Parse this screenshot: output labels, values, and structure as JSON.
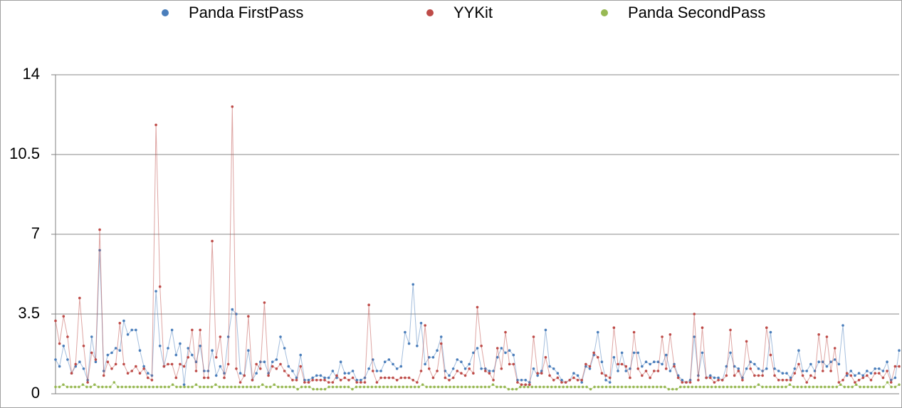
{
  "chart_data": {
    "type": "line",
    "ylim": [
      0,
      14
    ],
    "yticks": [
      0,
      3.5,
      7,
      10.5,
      14
    ],
    "grid": true,
    "legend": "top",
    "series": [
      {
        "name": "Panda FirstPass",
        "color": "#4a7ebb",
        "values": [
          1.5,
          1.2,
          2.1,
          1.5,
          0.9,
          1.2,
          1.4,
          1.1,
          0.6,
          2.5,
          1.4,
          6.3,
          1.0,
          1.7,
          1.8,
          2.0,
          1.9,
          3.2,
          2.6,
          2.8,
          2.8,
          1.9,
          1.2,
          0.9,
          0.8,
          4.5,
          2.1,
          1.2,
          2.0,
          2.8,
          1.7,
          2.2,
          0.4,
          2.0,
          1.7,
          1.4,
          2.1,
          1.0,
          1.0,
          1.9,
          0.8,
          1.2,
          0.9,
          2.5,
          3.7,
          3.5,
          0.9,
          0.8,
          1.9,
          0.6,
          0.9,
          1.4,
          1.4,
          0.9,
          1.4,
          1.5,
          2.5,
          2.0,
          1.2,
          1.0,
          0.7,
          1.7,
          0.6,
          0.6,
          0.7,
          0.8,
          0.8,
          0.7,
          0.7,
          1.0,
          0.7,
          1.4,
          0.9,
          0.9,
          1.0,
          0.6,
          0.6,
          0.7,
          1.1,
          1.5,
          1.0,
          1.0,
          1.4,
          1.5,
          1.3,
          1.1,
          1.2,
          2.7,
          2.2,
          4.8,
          2.1,
          3.1,
          1.3,
          1.6,
          1.6,
          1.9,
          2.5,
          1.0,
          0.8,
          1.1,
          1.5,
          1.4,
          1.1,
          1.3,
          1.8,
          2.0,
          1.1,
          1.1,
          1.0,
          1.0,
          1.6,
          2.0,
          1.8,
          1.9,
          1.7,
          0.6,
          0.6,
          0.6,
          0.5,
          1.1,
          0.8,
          1.0,
          2.8,
          1.2,
          1.1,
          0.9,
          0.6,
          0.5,
          0.6,
          0.9,
          0.8,
          0.5,
          1.2,
          1.1,
          1.7,
          2.7,
          1.4,
          0.6,
          0.5,
          1.6,
          1.0,
          1.8,
          1.0,
          1.1,
          1.8,
          1.8,
          1.2,
          1.4,
          1.3,
          1.4,
          1.4,
          1.3,
          1.7,
          1.0,
          1.3,
          0.8,
          0.6,
          0.5,
          0.6,
          2.5,
          0.8,
          1.8,
          0.7,
          0.8,
          0.7,
          0.7,
          0.6,
          1.2,
          1.8,
          1.2,
          1.1,
          0.7,
          1.1,
          1.4,
          1.3,
          1.1,
          1.0,
          1.1,
          2.7,
          1.1,
          1.0,
          0.9,
          0.9,
          0.7,
          1.1,
          1.9,
          1.0,
          1.0,
          1.3,
          1.0,
          1.4,
          1.4,
          1.2,
          1.4,
          1.5,
          1.3,
          3.0,
          0.8,
          1.0,
          0.8,
          0.9,
          0.8,
          1.0,
          0.9,
          1.1,
          1.1,
          1.0,
          1.4,
          0.6,
          0.7,
          1.9
        ]
      },
      {
        "name": "YYKit",
        "color": "#be4b48",
        "values": [
          3.2,
          2.2,
          3.4,
          2.5,
          0.9,
          1.3,
          4.2,
          2.1,
          0.5,
          1.8,
          1.5,
          7.2,
          0.8,
          1.4,
          1.1,
          1.3,
          3.1,
          1.3,
          0.9,
          1.0,
          1.2,
          0.9,
          1.1,
          0.7,
          0.6,
          11.8,
          4.7,
          1.2,
          1.3,
          1.3,
          0.7,
          1.3,
          1.2,
          1.6,
          2.8,
          1.0,
          2.8,
          0.7,
          0.7,
          6.7,
          1.6,
          2.5,
          0.7,
          1.3,
          12.6,
          1.1,
          0.5,
          0.8,
          3.4,
          0.6,
          1.3,
          1.1,
          4.0,
          0.8,
          1.2,
          1.1,
          1.3,
          1.0,
          0.8,
          0.6,
          0.6,
          1.2,
          0.5,
          0.5,
          0.6,
          0.6,
          0.6,
          0.6,
          0.5,
          0.5,
          0.8,
          0.6,
          0.7,
          0.6,
          0.7,
          0.5,
          0.5,
          0.5,
          3.9,
          1.0,
          0.5,
          0.7,
          0.7,
          0.7,
          0.7,
          0.6,
          0.7,
          0.7,
          0.7,
          0.6,
          0.5,
          1.0,
          3.0,
          1.1,
          0.7,
          1.0,
          2.2,
          0.7,
          0.6,
          0.7,
          1.0,
          0.9,
          0.8,
          1.1,
          0.9,
          3.8,
          2.1,
          1.0,
          0.9,
          0.6,
          2.0,
          1.1,
          2.7,
          1.3,
          1.3,
          0.5,
          0.4,
          0.4,
          0.4,
          2.5,
          0.9,
          0.9,
          1.6,
          0.8,
          0.6,
          0.7,
          0.5,
          0.5,
          0.6,
          0.7,
          0.6,
          0.6,
          1.3,
          1.2,
          1.8,
          1.6,
          0.9,
          0.8,
          0.7,
          2.9,
          1.3,
          1.3,
          1.2,
          0.7,
          2.7,
          1.1,
          0.8,
          1.0,
          0.7,
          1.0,
          1.0,
          2.5,
          1.1,
          2.6,
          1.2,
          0.7,
          0.5,
          0.5,
          0.5,
          3.5,
          0.6,
          2.9,
          0.7,
          0.7,
          0.5,
          0.6,
          0.6,
          0.8,
          2.8,
          0.8,
          1.0,
          0.6,
          2.3,
          1.1,
          0.8,
          0.8,
          0.8,
          2.9,
          1.7,
          0.8,
          0.6,
          0.6,
          0.6,
          0.6,
          0.9,
          1.3,
          0.8,
          0.5,
          0.8,
          0.7,
          2.6,
          1.0,
          2.5,
          1.0,
          2.0,
          0.5,
          0.6,
          0.9,
          0.8,
          0.5,
          0.6,
          0.7,
          0.8,
          0.6,
          0.9,
          0.9,
          0.7,
          1.0,
          0.5,
          1.2,
          1.2
        ]
      },
      {
        "name": "Panda SecondPass",
        "color": "#98b954",
        "values": [
          0.3,
          0.3,
          0.4,
          0.3,
          0.3,
          0.3,
          0.3,
          0.4,
          0.3,
          0.3,
          0.4,
          0.3,
          0.3,
          0.3,
          0.3,
          0.5,
          0.3,
          0.3,
          0.3,
          0.3,
          0.3,
          0.3,
          0.3,
          0.3,
          0.3,
          0.3,
          0.3,
          0.3,
          0.3,
          0.3,
          0.4,
          0.3,
          0.3,
          0.3,
          0.3,
          0.3,
          0.4,
          0.3,
          0.3,
          0.3,
          0.3,
          0.4,
          0.3,
          0.3,
          0.3,
          0.3,
          0.3,
          0.3,
          0.3,
          0.3,
          0.3,
          0.3,
          0.3,
          0.4,
          0.3,
          0.3,
          0.4,
          0.3,
          0.3,
          0.3,
          0.3,
          0.3,
          0.2,
          0.3,
          0.3,
          0.3,
          0.2,
          0.2,
          0.2,
          0.2,
          0.3,
          0.3,
          0.3,
          0.3,
          0.3,
          0.3,
          0.2,
          0.3,
          0.3,
          0.3,
          0.3,
          0.3,
          0.3,
          0.3,
          0.3,
          0.3,
          0.3,
          0.3,
          0.3,
          0.3,
          0.3,
          0.3,
          0.3,
          0.3,
          0.4,
          0.3,
          0.3,
          0.3,
          0.3,
          0.3,
          0.3,
          0.3,
          0.3,
          0.3,
          0.3,
          0.3,
          0.3,
          0.3,
          0.3,
          0.3,
          0.3,
          0.3,
          0.4,
          0.3,
          0.3,
          0.3,
          0.2,
          0.2,
          0.2,
          0.3,
          0.3,
          0.3,
          0.3,
          0.3,
          0.3,
          0.3,
          0.3,
          0.3,
          0.3,
          0.3,
          0.3,
          0.3,
          0.3,
          0.3,
          0.3,
          0.3,
          0.3,
          0.2,
          0.3,
          0.3,
          0.3,
          0.3,
          0.3,
          0.3,
          0.3,
          0.3,
          0.3,
          0.3,
          0.3,
          0.3,
          0.3,
          0.3,
          0.3,
          0.3,
          0.3,
          0.3,
          0.3,
          0.2,
          0.2,
          0.2,
          0.3,
          0.3,
          0.3,
          0.3,
          0.3,
          0.3,
          0.3,
          0.3,
          0.3,
          0.3,
          0.3,
          0.3,
          0.3,
          0.3,
          0.3,
          0.3,
          0.3,
          0.3,
          0.3,
          0.3,
          0.4,
          0.3,
          0.3,
          0.3,
          0.3,
          0.3,
          0.3,
          0.3,
          0.4,
          0.3,
          0.3,
          0.3,
          0.3,
          0.3,
          0.3,
          0.3,
          0.3,
          0.3,
          0.3,
          0.3,
          0.3,
          0.4,
          0.3,
          0.3,
          0.3,
          0.4,
          0.3,
          0.3,
          0.3,
          0.3,
          0.3,
          0.3,
          0.3,
          0.5,
          0.3,
          0.3,
          0.4
        ]
      }
    ]
  }
}
